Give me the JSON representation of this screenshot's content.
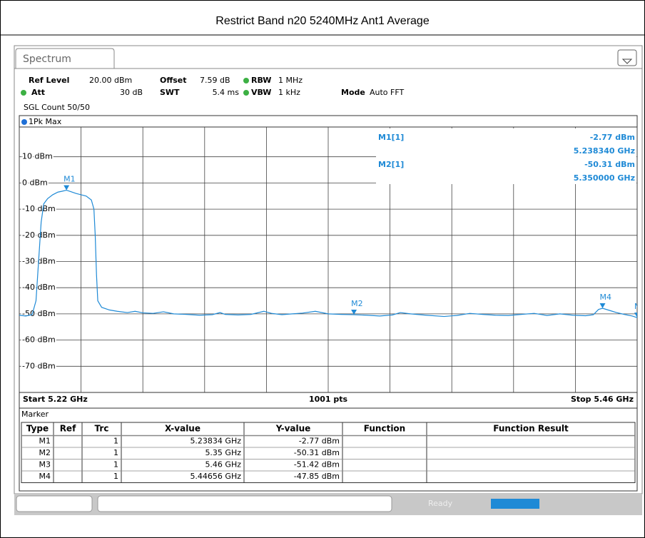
{
  "title": "Restrict Band n20 5240MHz Ant1 Average",
  "tab": "Spectrum",
  "settings": {
    "ref_level": {
      "label": "Ref Level",
      "value": "20.00 dBm"
    },
    "offset": {
      "label": "Offset",
      "value": "7.59 dB"
    },
    "rbw": {
      "label": "RBW",
      "value": "1 MHz"
    },
    "att": {
      "label": "Att",
      "value": "30 dB"
    },
    "swt": {
      "label": "SWT",
      "value": "5.4 ms"
    },
    "vbw": {
      "label": "VBW",
      "value": "1 kHz"
    },
    "mode": {
      "label": "Mode",
      "value": "Auto FFT"
    },
    "count": "SGL Count 50/50"
  },
  "chart_data": {
    "type": "line",
    "xlim": [
      5.22,
      5.46
    ],
    "ylim": [
      -80,
      20
    ],
    "yticks": [
      {
        "value": 10,
        "label": "10 dBm"
      },
      {
        "value": 0,
        "label": "0 dBm"
      },
      {
        "value": -10,
        "label": "-10 dBm"
      },
      {
        "value": -20,
        "label": "-20 dBm"
      },
      {
        "value": -30,
        "label": "-30 dBm"
      },
      {
        "value": -40,
        "label": "-40 dBm"
      },
      {
        "value": -50,
        "label": "-50 dBm"
      },
      {
        "value": -60,
        "label": "-60 dBm"
      },
      {
        "value": -70,
        "label": "-70 dBm"
      }
    ],
    "xgrid": [
      5.22,
      5.244,
      5.268,
      5.292,
      5.316,
      5.34,
      5.364,
      5.388,
      5.412,
      5.436,
      5.46
    ],
    "grid": true,
    "x": [
      5.22,
      5.2225,
      5.225,
      5.2265,
      5.2275,
      5.2285,
      5.2295,
      5.231,
      5.233,
      5.235,
      5.2365,
      5.23834,
      5.24,
      5.242,
      5.244,
      5.246,
      5.248,
      5.249,
      5.2495,
      5.25,
      5.2505,
      5.252,
      5.255,
      5.258,
      5.262,
      5.265,
      5.268,
      5.272,
      5.276,
      5.28,
      5.285,
      5.29,
      5.295,
      5.298,
      5.3,
      5.305,
      5.31,
      5.315,
      5.318,
      5.322,
      5.326,
      5.33,
      5.335,
      5.34,
      5.345,
      5.35,
      5.355,
      5.36,
      5.365,
      5.368,
      5.372,
      5.378,
      5.385,
      5.39,
      5.395,
      5.4,
      5.405,
      5.41,
      5.415,
      5.42,
      5.425,
      5.43,
      5.435,
      5.44,
      5.443,
      5.445,
      5.44656,
      5.449,
      5.452,
      5.455,
      5.458,
      5.46
    ],
    "series": [
      {
        "name": "1Pk Max",
        "color": "#1f8ad6",
        "values": [
          -50.5,
          -50.8,
          -50.3,
          -45,
          -30,
          -15,
          -8,
          -6,
          -4.5,
          -3.5,
          -3.2,
          -2.77,
          -3.3,
          -4,
          -4.5,
          -5,
          -6.5,
          -10,
          -20,
          -35,
          -45,
          -47.5,
          -48.5,
          -49,
          -49.5,
          -49,
          -49.6,
          -49.8,
          -49.2,
          -50,
          -50.2,
          -50.5,
          -50.3,
          -49.5,
          -50.2,
          -50.4,
          -50.2,
          -49,
          -49.8,
          -50.3,
          -50,
          -49.7,
          -49,
          -50,
          -50.2,
          -50.31,
          -50.5,
          -50.8,
          -50.4,
          -49.5,
          -50,
          -50.5,
          -51,
          -50.6,
          -49.8,
          -50.2,
          -50.5,
          -50.6,
          -50.2,
          -49.8,
          -50.6,
          -50,
          -50.5,
          -50.7,
          -50.3,
          -48.3,
          -47.85,
          -48.6,
          -49.5,
          -50.2,
          -50.8,
          -51.42
        ]
      }
    ],
    "markers": [
      {
        "name": "M1",
        "x": 5.23834,
        "y": -2.77
      },
      {
        "name": "M2",
        "x": 5.35,
        "y": -50.31
      },
      {
        "name": "M3",
        "x": 5.46,
        "y": -51.42
      },
      {
        "name": "M4",
        "x": 5.44656,
        "y": -47.85
      }
    ],
    "readouts": [
      {
        "label": "M1[1]",
        "y": "-2.77 dBm",
        "x": "5.238340 GHz"
      },
      {
        "label": "M2[1]",
        "y": "-50.31 dBm",
        "x": "5.350000 GHz"
      }
    ]
  },
  "footer": {
    "start": "Start 5.22 GHz",
    "points": "1001 pts",
    "stop": "Stop 5.46 GHz"
  },
  "marker_table": {
    "title": "Marker",
    "columns": [
      "Type",
      "Ref",
      "Trc",
      "X-value",
      "Y-value",
      "Function",
      "Function Result"
    ],
    "rows": [
      [
        "M1",
        "",
        "1",
        "5.23834 GHz",
        "-2.77 dBm",
        "",
        ""
      ],
      [
        "M2",
        "",
        "1",
        "5.35 GHz",
        "-50.31 dBm",
        "",
        ""
      ],
      [
        "M3",
        "",
        "1",
        "5.46 GHz",
        "-51.42 dBm",
        "",
        ""
      ],
      [
        "M4",
        "",
        "1",
        "5.44656 GHz",
        "-47.85 dBm",
        "",
        ""
      ]
    ]
  },
  "status": "Ready"
}
